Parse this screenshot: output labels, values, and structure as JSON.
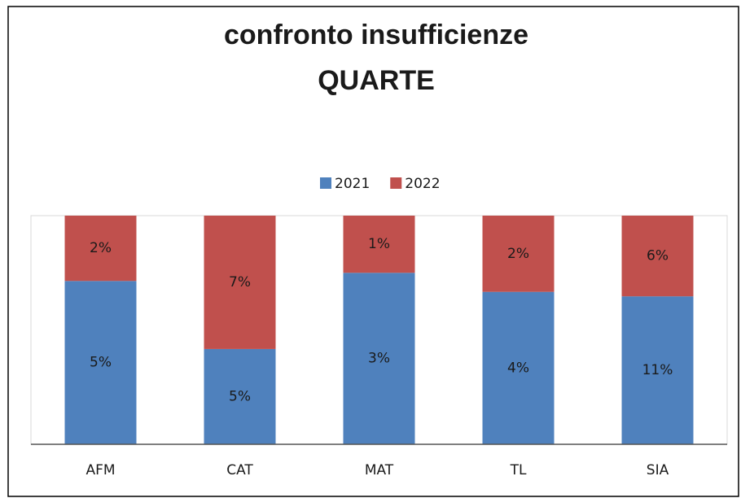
{
  "chart_data": {
    "type": "bar",
    "stacking": "percent",
    "title": [
      "confronto insufficienze",
      "QUARTE"
    ],
    "categories": [
      "AFM",
      "CAT",
      "MAT",
      "TL",
      "SIA"
    ],
    "series": [
      {
        "name": "2021",
        "color": "#4f81bd",
        "values": [
          5,
          5,
          3,
          4,
          11
        ],
        "value_labels": [
          "5%",
          "5%",
          "3%",
          "4%",
          "11%"
        ]
      },
      {
        "name": "2022",
        "color": "#c0504d",
        "values": [
          2,
          7,
          1,
          2,
          6
        ],
        "value_labels": [
          "2%",
          "7%",
          "1%",
          "2%",
          "6%"
        ]
      }
    ],
    "legend": "top"
  }
}
